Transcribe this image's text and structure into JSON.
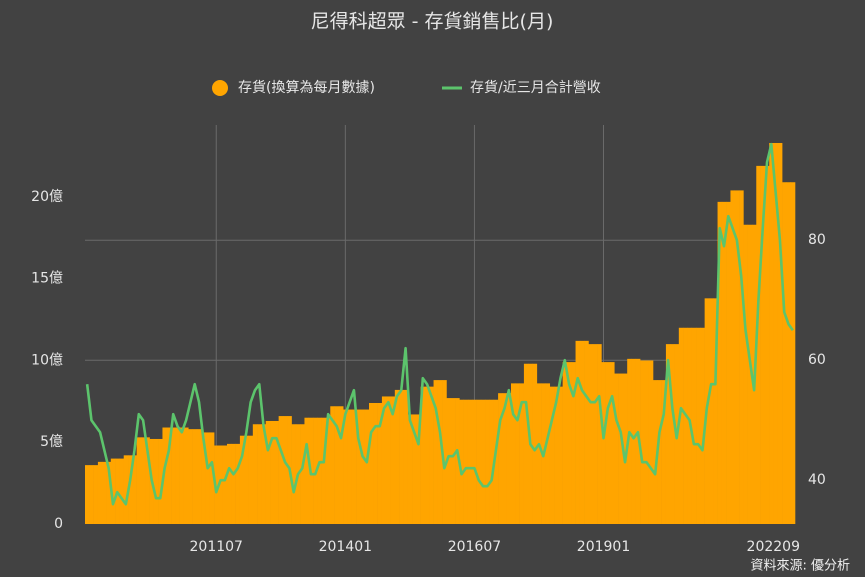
{
  "chart_data": {
    "type": "bar_line",
    "title": "尼得科超眾 - 存貨銷售比(月)",
    "source": "資料來源: 優分析",
    "categories": [
      null,
      null,
      null,
      null,
      null,
      null,
      null,
      null,
      null,
      null,
      null,
      null,
      null,
      null,
      null,
      null,
      null,
      null,
      null,
      null,
      null,
      null,
      null,
      null,
      null,
      null,
      null,
      null,
      null,
      null,
      "201107",
      null,
      null,
      null,
      null,
      null,
      null,
      null,
      null,
      null,
      null,
      null,
      null,
      null,
      null,
      null,
      null,
      null,
      null,
      null,
      null,
      null,
      null,
      null,
      null,
      null,
      null,
      null,
      null,
      null,
      "201401",
      null,
      null,
      null,
      null,
      null,
      null,
      null,
      null,
      null,
      null,
      null,
      null,
      null,
      null,
      null,
      null,
      null,
      null,
      null,
      null,
      null,
      null,
      null,
      null,
      null,
      null,
      null,
      null,
      null,
      "201607",
      null,
      null,
      null,
      null,
      null,
      null,
      null,
      null,
      null,
      null,
      null,
      null,
      null,
      null,
      null,
      null,
      null,
      null,
      null,
      null,
      null,
      null,
      null,
      null,
      null,
      null,
      null,
      null,
      null,
      "201901",
      null,
      null,
      null,
      null,
      null,
      null,
      null,
      null,
      null,
      null,
      null,
      null,
      null,
      null,
      null,
      null,
      null,
      null,
      null,
      null,
      null,
      null,
      null,
      null,
      null,
      null,
      null,
      null,
      null,
      null,
      null,
      null,
      null,
      null,
      null,
      null,
      null,
      null,
      null,
      null,
      null,
      null,
      null,
      "202209"
    ],
    "series": [
      {
        "name": "存貨(換算為每月數據)",
        "color": "#ffa500",
        "kind": "bar",
        "values": [
          3.6,
          3.6,
          3.6,
          3.8,
          3.8,
          3.8,
          4.0,
          4.0,
          4.0,
          4.2,
          4.2,
          4.2,
          5.3,
          5.3,
          5.3,
          5.2,
          5.2,
          5.2,
          5.9,
          5.9,
          5.9,
          5.9,
          5.9,
          5.9,
          5.8,
          5.8,
          5.8,
          5.6,
          5.6,
          5.6,
          4.8,
          4.8,
          4.8,
          4.9,
          4.9,
          4.9,
          5.4,
          5.4,
          5.4,
          6.1,
          6.1,
          6.1,
          6.3,
          6.3,
          6.3,
          6.6,
          6.6,
          6.6,
          6.1,
          6.1,
          6.1,
          6.5,
          6.5,
          6.5,
          6.5,
          6.5,
          6.5,
          7.2,
          7.2,
          7.2,
          7.0,
          7.0,
          7.0,
          7.0,
          7.0,
          7.0,
          7.4,
          7.4,
          7.4,
          7.8,
          7.8,
          7.8,
          8.2,
          8.2,
          8.2,
          6.7,
          6.7,
          6.7,
          8.4,
          8.4,
          8.4,
          8.8,
          8.8,
          8.8,
          7.7,
          7.7,
          7.7,
          7.6,
          7.6,
          7.6,
          7.6,
          7.6,
          7.6,
          7.6,
          7.6,
          7.6,
          8.0,
          8.0,
          8.0,
          8.6,
          8.6,
          8.6,
          9.8,
          9.8,
          9.8,
          8.6,
          8.6,
          8.6,
          8.4,
          8.4,
          8.4,
          9.9,
          9.9,
          9.9,
          11.2,
          11.2,
          11.2,
          11.0,
          11.0,
          11.0,
          9.9,
          9.9,
          9.9,
          9.2,
          9.2,
          9.2,
          10.1,
          10.1,
          10.1,
          10.0,
          10.0,
          10.0,
          8.8,
          8.8,
          8.8,
          11.0,
          11.0,
          11.0,
          12.0,
          12.0,
          12.0,
          12.0,
          12.0,
          12.0,
          13.8,
          13.8,
          13.8,
          19.7,
          19.7,
          19.7,
          20.4,
          20.4,
          20.4,
          18.3,
          18.3,
          18.3,
          21.9,
          21.9,
          21.9,
          23.3,
          23.3,
          23.3,
          20.9,
          20.9,
          20.9
        ]
      },
      {
        "name": "存貨/近三月合計營收",
        "color": "#5cc46c",
        "kind": "line",
        "axis": "y2",
        "values": [
          56,
          50,
          49,
          48,
          45,
          42,
          36,
          38,
          37,
          36,
          40,
          45,
          51,
          50,
          45,
          40,
          37,
          37,
          42,
          45,
          51,
          49,
          48,
          50,
          53,
          56,
          53,
          47,
          42,
          43,
          38,
          40,
          40,
          42,
          41,
          42,
          44,
          48,
          53,
          55,
          56,
          49,
          45,
          47,
          47,
          45,
          43,
          42,
          38,
          41,
          42,
          46,
          41,
          41,
          43,
          43,
          51,
          50,
          49,
          47,
          51,
          53,
          55,
          47,
          44,
          43,
          48,
          49,
          49,
          52,
          53,
          51,
          54,
          55,
          62,
          50,
          48,
          46,
          57,
          56,
          54,
          52,
          48,
          42,
          44,
          44,
          45,
          41,
          42,
          42,
          42,
          40,
          39,
          39,
          40,
          45,
          50,
          52,
          55,
          51,
          50,
          53,
          53,
          46,
          45,
          46,
          44,
          47,
          50,
          53,
          57,
          60,
          56,
          54,
          57,
          55,
          54,
          53,
          53,
          54,
          47,
          52,
          54,
          50,
          48,
          43,
          48,
          47,
          48,
          43,
          43,
          42,
          41,
          48,
          51,
          60,
          52,
          47,
          52,
          51,
          50,
          46,
          46,
          45,
          52,
          56,
          56,
          82,
          79,
          84,
          82,
          80,
          74,
          65,
          60,
          55,
          70,
          82,
          93,
          96,
          88,
          80,
          68,
          66,
          65
        ]
      }
    ],
    "ylim": [
      0,
      24.4
    ],
    "yticks": [
      0,
      {
        "value": 5,
        "label": "5億"
      },
      {
        "value": 10,
        "label": "10億"
      },
      {
        "value": 15,
        "label": "15億"
      },
      {
        "value": 20,
        "label": "20億"
      }
    ],
    "y2lim": [
      32.7,
      99.2
    ],
    "y2ticks": [
      40,
      60,
      80
    ],
    "grid": true
  }
}
